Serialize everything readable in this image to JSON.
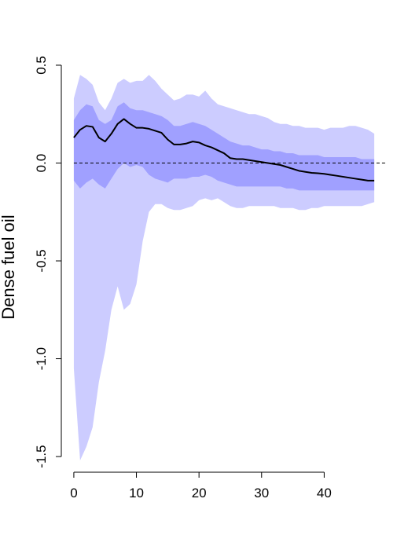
{
  "chart_data": {
    "type": "area",
    "title": "",
    "xlabel": "",
    "ylabel": "Dense fuel oil",
    "xlim": [
      -2,
      50
    ],
    "ylim": [
      -1.58,
      0.52
    ],
    "x_ticks": [
      0,
      10,
      20,
      30,
      40
    ],
    "x_tick_labels": [
      "0",
      "10",
      "20",
      "30",
      "40"
    ],
    "y_ticks": [
      -1.5,
      -1.0,
      -0.5,
      0.0,
      0.5
    ],
    "y_tick_labels": [
      "-1.5",
      "-1.0",
      "-0.5",
      "0.0",
      "0.5"
    ],
    "reference_line": {
      "y": 0,
      "style": "dashed"
    },
    "colors": {
      "outer_band": "#ccccff",
      "inner_band": "#a0a0ff",
      "line": "#000000",
      "reference": "#000000"
    },
    "x": [
      0,
      1,
      2,
      3,
      4,
      5,
      6,
      7,
      8,
      9,
      10,
      11,
      12,
      13,
      14,
      15,
      16,
      17,
      18,
      19,
      20,
      21,
      22,
      23,
      24,
      25,
      26,
      27,
      28,
      29,
      30,
      31,
      32,
      33,
      34,
      35,
      36,
      37,
      38,
      39,
      40,
      41,
      42,
      43,
      44,
      45,
      46,
      47,
      48
    ],
    "series": [
      {
        "role": "outer_band_upper",
        "values": [
          0.33,
          0.45,
          0.43,
          0.4,
          0.31,
          0.27,
          0.33,
          0.41,
          0.43,
          0.41,
          0.42,
          0.42,
          0.45,
          0.42,
          0.38,
          0.35,
          0.32,
          0.33,
          0.35,
          0.35,
          0.34,
          0.37,
          0.33,
          0.3,
          0.29,
          0.28,
          0.27,
          0.26,
          0.25,
          0.25,
          0.24,
          0.23,
          0.21,
          0.2,
          0.2,
          0.19,
          0.19,
          0.18,
          0.18,
          0.18,
          0.17,
          0.18,
          0.18,
          0.18,
          0.19,
          0.19,
          0.18,
          0.17,
          0.15
        ]
      },
      {
        "role": "inner_band_upper",
        "values": [
          0.22,
          0.27,
          0.3,
          0.29,
          0.22,
          0.2,
          0.22,
          0.29,
          0.31,
          0.28,
          0.27,
          0.27,
          0.26,
          0.25,
          0.24,
          0.22,
          0.19,
          0.19,
          0.2,
          0.21,
          0.2,
          0.19,
          0.17,
          0.15,
          0.13,
          0.11,
          0.1,
          0.09,
          0.09,
          0.08,
          0.07,
          0.07,
          0.06,
          0.06,
          0.05,
          0.05,
          0.04,
          0.04,
          0.04,
          0.04,
          0.03,
          0.03,
          0.03,
          0.03,
          0.03,
          0.03,
          0.02,
          0.02,
          0.02
        ]
      },
      {
        "role": "median",
        "values": [
          0.13,
          0.17,
          0.19,
          0.185,
          0.13,
          0.11,
          0.15,
          0.2,
          0.225,
          0.2,
          0.18,
          0.18,
          0.175,
          0.165,
          0.155,
          0.12,
          0.095,
          0.095,
          0.1,
          0.11,
          0.105,
          0.09,
          0.08,
          0.065,
          0.05,
          0.025,
          0.02,
          0.02,
          0.015,
          0.01,
          0.005,
          0.0,
          -0.005,
          -0.01,
          -0.02,
          -0.03,
          -0.04,
          -0.045,
          -0.05,
          -0.052,
          -0.055,
          -0.06,
          -0.065,
          -0.07,
          -0.075,
          -0.08,
          -0.085,
          -0.09,
          -0.09
        ]
      },
      {
        "role": "inner_band_lower",
        "values": [
          -0.09,
          -0.13,
          -0.1,
          -0.08,
          -0.11,
          -0.13,
          -0.08,
          -0.03,
          0.0,
          -0.02,
          -0.01,
          -0.02,
          -0.06,
          -0.08,
          -0.09,
          -0.1,
          -0.08,
          -0.08,
          -0.08,
          -0.07,
          -0.07,
          -0.06,
          -0.07,
          -0.09,
          -0.1,
          -0.11,
          -0.12,
          -0.12,
          -0.12,
          -0.12,
          -0.12,
          -0.12,
          -0.12,
          -0.12,
          -0.13,
          -0.13,
          -0.14,
          -0.14,
          -0.14,
          -0.14,
          -0.14,
          -0.14,
          -0.14,
          -0.14,
          -0.14,
          -0.14,
          -0.14,
          -0.14,
          -0.14
        ]
      },
      {
        "role": "outer_band_lower",
        "values": [
          -1.05,
          -1.52,
          -1.45,
          -1.35,
          -1.12,
          -0.96,
          -0.75,
          -0.63,
          -0.75,
          -0.72,
          -0.62,
          -0.4,
          -0.25,
          -0.21,
          -0.21,
          -0.23,
          -0.24,
          -0.24,
          -0.23,
          -0.22,
          -0.19,
          -0.18,
          -0.19,
          -0.18,
          -0.2,
          -0.22,
          -0.23,
          -0.23,
          -0.22,
          -0.22,
          -0.22,
          -0.22,
          -0.22,
          -0.23,
          -0.23,
          -0.23,
          -0.24,
          -0.24,
          -0.23,
          -0.23,
          -0.22,
          -0.22,
          -0.22,
          -0.22,
          -0.22,
          -0.22,
          -0.22,
          -0.21,
          -0.2
        ]
      }
    ]
  }
}
